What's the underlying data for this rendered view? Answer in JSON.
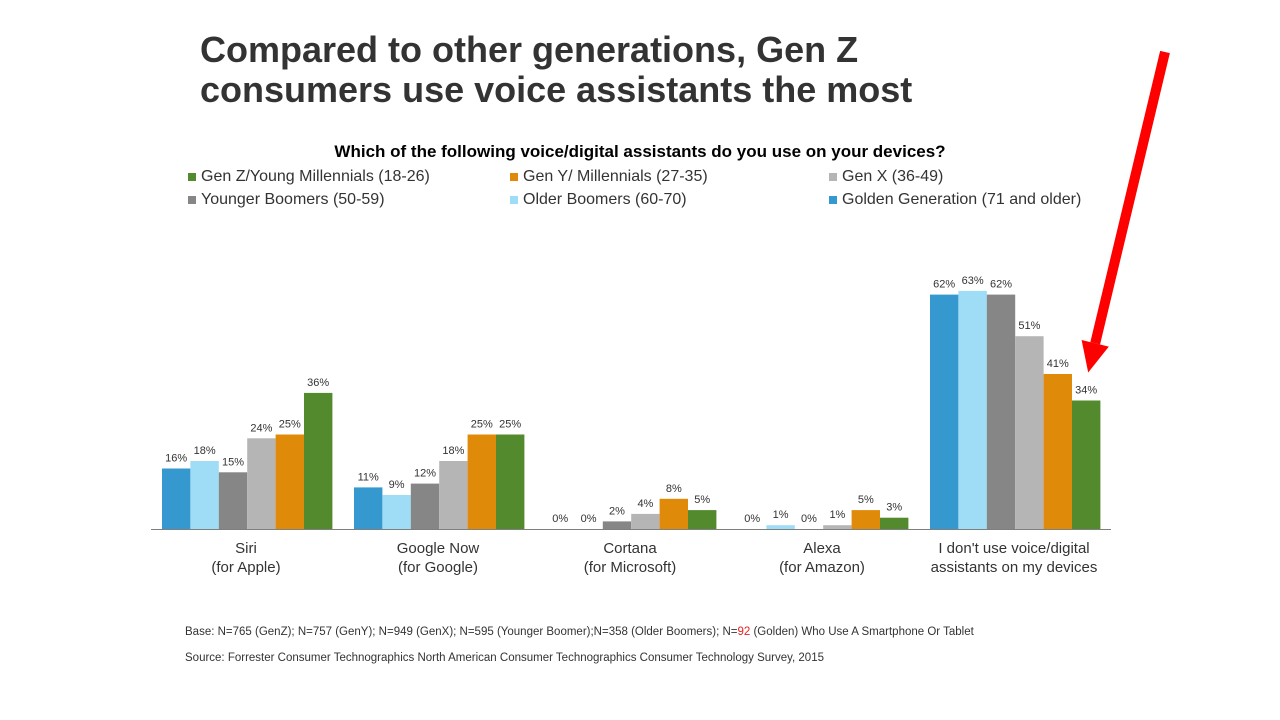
{
  "slide": {
    "title_line1": "Compared to other generations, Gen Z",
    "title_line2": "consumers use voice assistants the most"
  },
  "chart_data": {
    "type": "bar",
    "title": "Which of the following voice/digital assistants do you use on your devices?",
    "xlabel": "",
    "ylabel": "",
    "ylim": [
      0,
      70
    ],
    "grid": false,
    "legend_position": "top",
    "value_suffix": "%",
    "categories": [
      [
        "Siri",
        "(for Apple)"
      ],
      [
        "Google Now",
        "(for Google)"
      ],
      [
        "Cortana",
        "(for Microsoft)"
      ],
      [
        "Alexa",
        "(for Amazon)"
      ],
      [
        "I don't use voice/digital",
        "assistants on my devices"
      ]
    ],
    "series": [
      {
        "name": "Golden Generation (71 and older)",
        "color": "#3599cf",
        "values": [
          16,
          11,
          0,
          0,
          62
        ]
      },
      {
        "name": "Older Boomers (60-70)",
        "color": "#9fdcf5",
        "values": [
          18,
          9,
          0,
          1,
          63
        ]
      },
      {
        "name": "Younger Boomers (50-59)",
        "color": "#868686",
        "values": [
          15,
          12,
          2,
          0,
          62
        ]
      },
      {
        "name": "Gen X (36-49)",
        "color": "#b5b5b5",
        "values": [
          24,
          18,
          4,
          1,
          51
        ]
      },
      {
        "name": "Gen Y/ Millennials (27-35)",
        "color": "#e08a0a",
        "values": [
          25,
          25,
          8,
          5,
          41
        ]
      },
      {
        "name": "Gen Z/Young Millennials (18-26)",
        "color": "#548a2e",
        "values": [
          36,
          25,
          5,
          3,
          34
        ]
      }
    ],
    "legend_order": [
      "Gen Z/Young Millennials (18-26)",
      "Gen Y/ Millennials (27-35)",
      "Gen X (36-49)",
      "Younger Boomers (50-59)",
      "Older Boomers (60-70)",
      "Golden Generation (71 and older)"
    ],
    "highlight": {
      "category_index": 4,
      "series_name": "Gen Z/Young Millennials (18-26)",
      "marker": "red-arrow",
      "color": "#ff0000"
    }
  },
  "footnotes": {
    "base_prefix": "Base: N=765 (GenZ); N=757 (GenY); N=949 (GenX); N=595 (Younger Boomer);N=358 (Older Boomers); N=",
    "base_highlight": "92",
    "base_suffix": " (Golden) Who Use A Smartphone Or Tablet",
    "source": "Source: Forrester Consumer Technographics North American Consumer Technographics Consumer Technology Survey, 2015"
  }
}
